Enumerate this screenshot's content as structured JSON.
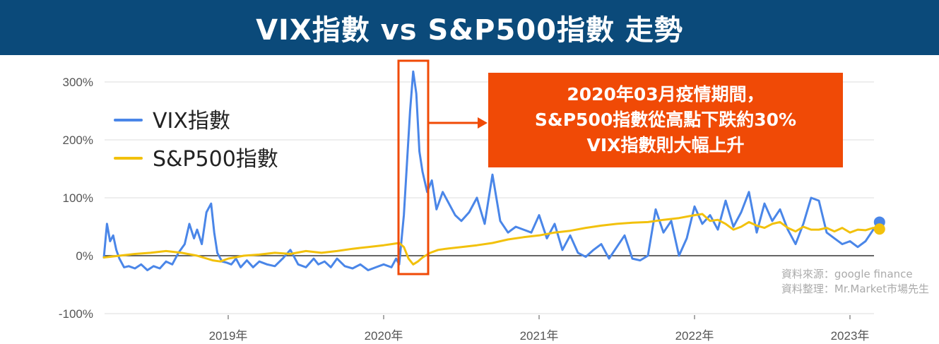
{
  "title": "VIX指數 vs S&P500指數 走勢",
  "annotation": {
    "lines": [
      "2020年03月疫情期間，",
      "S&P500指數從高點下跌約30%",
      "VIX指數則大幅上升"
    ],
    "color": "#f04a06"
  },
  "source": {
    "line1": "資料來源：google finance",
    "line2": "資料整理：Mr.Market市場先生"
  },
  "chart_data": {
    "type": "line",
    "xlabel": "",
    "ylabel": "",
    "ylim": [
      -100,
      320
    ],
    "yticks": [
      -100,
      0,
      100,
      200,
      300
    ],
    "ytick_labels": [
      "-100%",
      "0%",
      "100%",
      "200%",
      "300%"
    ],
    "xticks": [
      2019,
      2020,
      2021,
      2022,
      2023
    ],
    "xtick_labels": [
      "2019年",
      "2020年",
      "2021年",
      "2022年",
      "2023年"
    ],
    "xlim": [
      2018.2,
      2023.2
    ],
    "grid": "horizontal",
    "legend_position": "top-left",
    "series": [
      {
        "name": "VIX指數",
        "color": "#4a86e8",
        "x": [
          2018.2,
          2018.22,
          2018.24,
          2018.26,
          2018.28,
          2018.3,
          2018.33,
          2018.36,
          2018.4,
          2018.44,
          2018.48,
          2018.52,
          2018.56,
          2018.6,
          2018.64,
          2018.68,
          2018.72,
          2018.75,
          2018.78,
          2018.8,
          2018.83,
          2018.86,
          2018.89,
          2018.91,
          2018.93,
          2018.96,
          2018.99,
          2019.02,
          2019.05,
          2019.08,
          2019.12,
          2019.16,
          2019.2,
          2019.25,
          2019.3,
          2019.35,
          2019.4,
          2019.45,
          2019.5,
          2019.55,
          2019.58,
          2019.62,
          2019.66,
          2019.7,
          2019.75,
          2019.8,
          2019.85,
          2019.9,
          2019.95,
          2020.0,
          2020.05,
          2020.08,
          2020.1,
          2020.13,
          2020.15,
          2020.17,
          2020.19,
          2020.21,
          2020.23,
          2020.25,
          2020.28,
          2020.31,
          2020.34,
          2020.38,
          2020.42,
          2020.46,
          2020.5,
          2020.55,
          2020.6,
          2020.65,
          2020.7,
          2020.75,
          2020.8,
          2020.85,
          2020.9,
          2020.95,
          2021.0,
          2021.05,
          2021.1,
          2021.15,
          2021.2,
          2021.25,
          2021.3,
          2021.35,
          2021.4,
          2021.45,
          2021.5,
          2021.55,
          2021.6,
          2021.65,
          2021.7,
          2021.75,
          2021.8,
          2021.85,
          2021.9,
          2021.95,
          2022.0,
          2022.05,
          2022.1,
          2022.15,
          2022.2,
          2022.25,
          2022.3,
          2022.35,
          2022.4,
          2022.45,
          2022.5,
          2022.55,
          2022.6,
          2022.65,
          2022.7,
          2022.75,
          2022.8,
          2022.85,
          2022.9,
          2022.95,
          2023.0,
          2023.05,
          2023.1,
          2023.15,
          2023.19
        ],
        "values": [
          -3,
          55,
          25,
          35,
          10,
          -5,
          -20,
          -18,
          -22,
          -15,
          -25,
          -18,
          -22,
          -10,
          -15,
          5,
          20,
          55,
          30,
          45,
          20,
          75,
          90,
          40,
          5,
          -10,
          -12,
          -15,
          -5,
          -20,
          -8,
          -20,
          -10,
          -15,
          -18,
          -5,
          10,
          -15,
          -20,
          -5,
          -15,
          -10,
          -20,
          -5,
          -18,
          -22,
          -15,
          -25,
          -20,
          -15,
          -20,
          -5,
          -15,
          70,
          160,
          250,
          318,
          280,
          180,
          145,
          110,
          130,
          80,
          110,
          90,
          70,
          60,
          75,
          100,
          55,
          140,
          60,
          40,
          50,
          45,
          40,
          70,
          30,
          55,
          10,
          35,
          5,
          -2,
          10,
          20,
          -5,
          15,
          35,
          -5,
          -8,
          0,
          80,
          40,
          60,
          0,
          30,
          85,
          55,
          70,
          45,
          95,
          50,
          75,
          110,
          40,
          90,
          60,
          80,
          45,
          20,
          55,
          100,
          95,
          40,
          30,
          20,
          25,
          15,
          25,
          45,
          58
        ]
      },
      {
        "name": "S&P500指數",
        "color": "#f2c10c",
        "x": [
          2018.2,
          2018.3,
          2018.4,
          2018.5,
          2018.6,
          2018.7,
          2018.8,
          2018.9,
          2018.95,
          2019.0,
          2019.1,
          2019.2,
          2019.3,
          2019.4,
          2019.5,
          2019.6,
          2019.7,
          2019.8,
          2019.9,
          2020.0,
          2020.05,
          2020.1,
          2020.13,
          2020.16,
          2020.19,
          2020.22,
          2020.25,
          2020.3,
          2020.35,
          2020.4,
          2020.5,
          2020.6,
          2020.7,
          2020.8,
          2020.9,
          2021.0,
          2021.1,
          2021.2,
          2021.3,
          2021.4,
          2021.5,
          2021.6,
          2021.7,
          2021.8,
          2021.9,
          2022.0,
          2022.05,
          2022.1,
          2022.15,
          2022.2,
          2022.25,
          2022.3,
          2022.35,
          2022.4,
          2022.45,
          2022.5,
          2022.55,
          2022.6,
          2022.65,
          2022.7,
          2022.75,
          2022.8,
          2022.85,
          2022.9,
          2022.95,
          2023.0,
          2023.05,
          2023.1,
          2023.15,
          2023.19
        ],
        "values": [
          -3,
          0,
          3,
          5,
          8,
          5,
          0,
          -8,
          -10,
          -5,
          0,
          2,
          5,
          3,
          8,
          5,
          8,
          12,
          15,
          18,
          20,
          22,
          15,
          -5,
          -15,
          -10,
          -3,
          5,
          10,
          12,
          15,
          18,
          22,
          28,
          32,
          35,
          40,
          43,
          48,
          52,
          55,
          57,
          58,
          62,
          65,
          70,
          72,
          60,
          62,
          55,
          45,
          50,
          58,
          52,
          48,
          55,
          58,
          48,
          42,
          50,
          45,
          45,
          48,
          42,
          48,
          40,
          45,
          44,
          48,
          46
        ]
      }
    ]
  }
}
